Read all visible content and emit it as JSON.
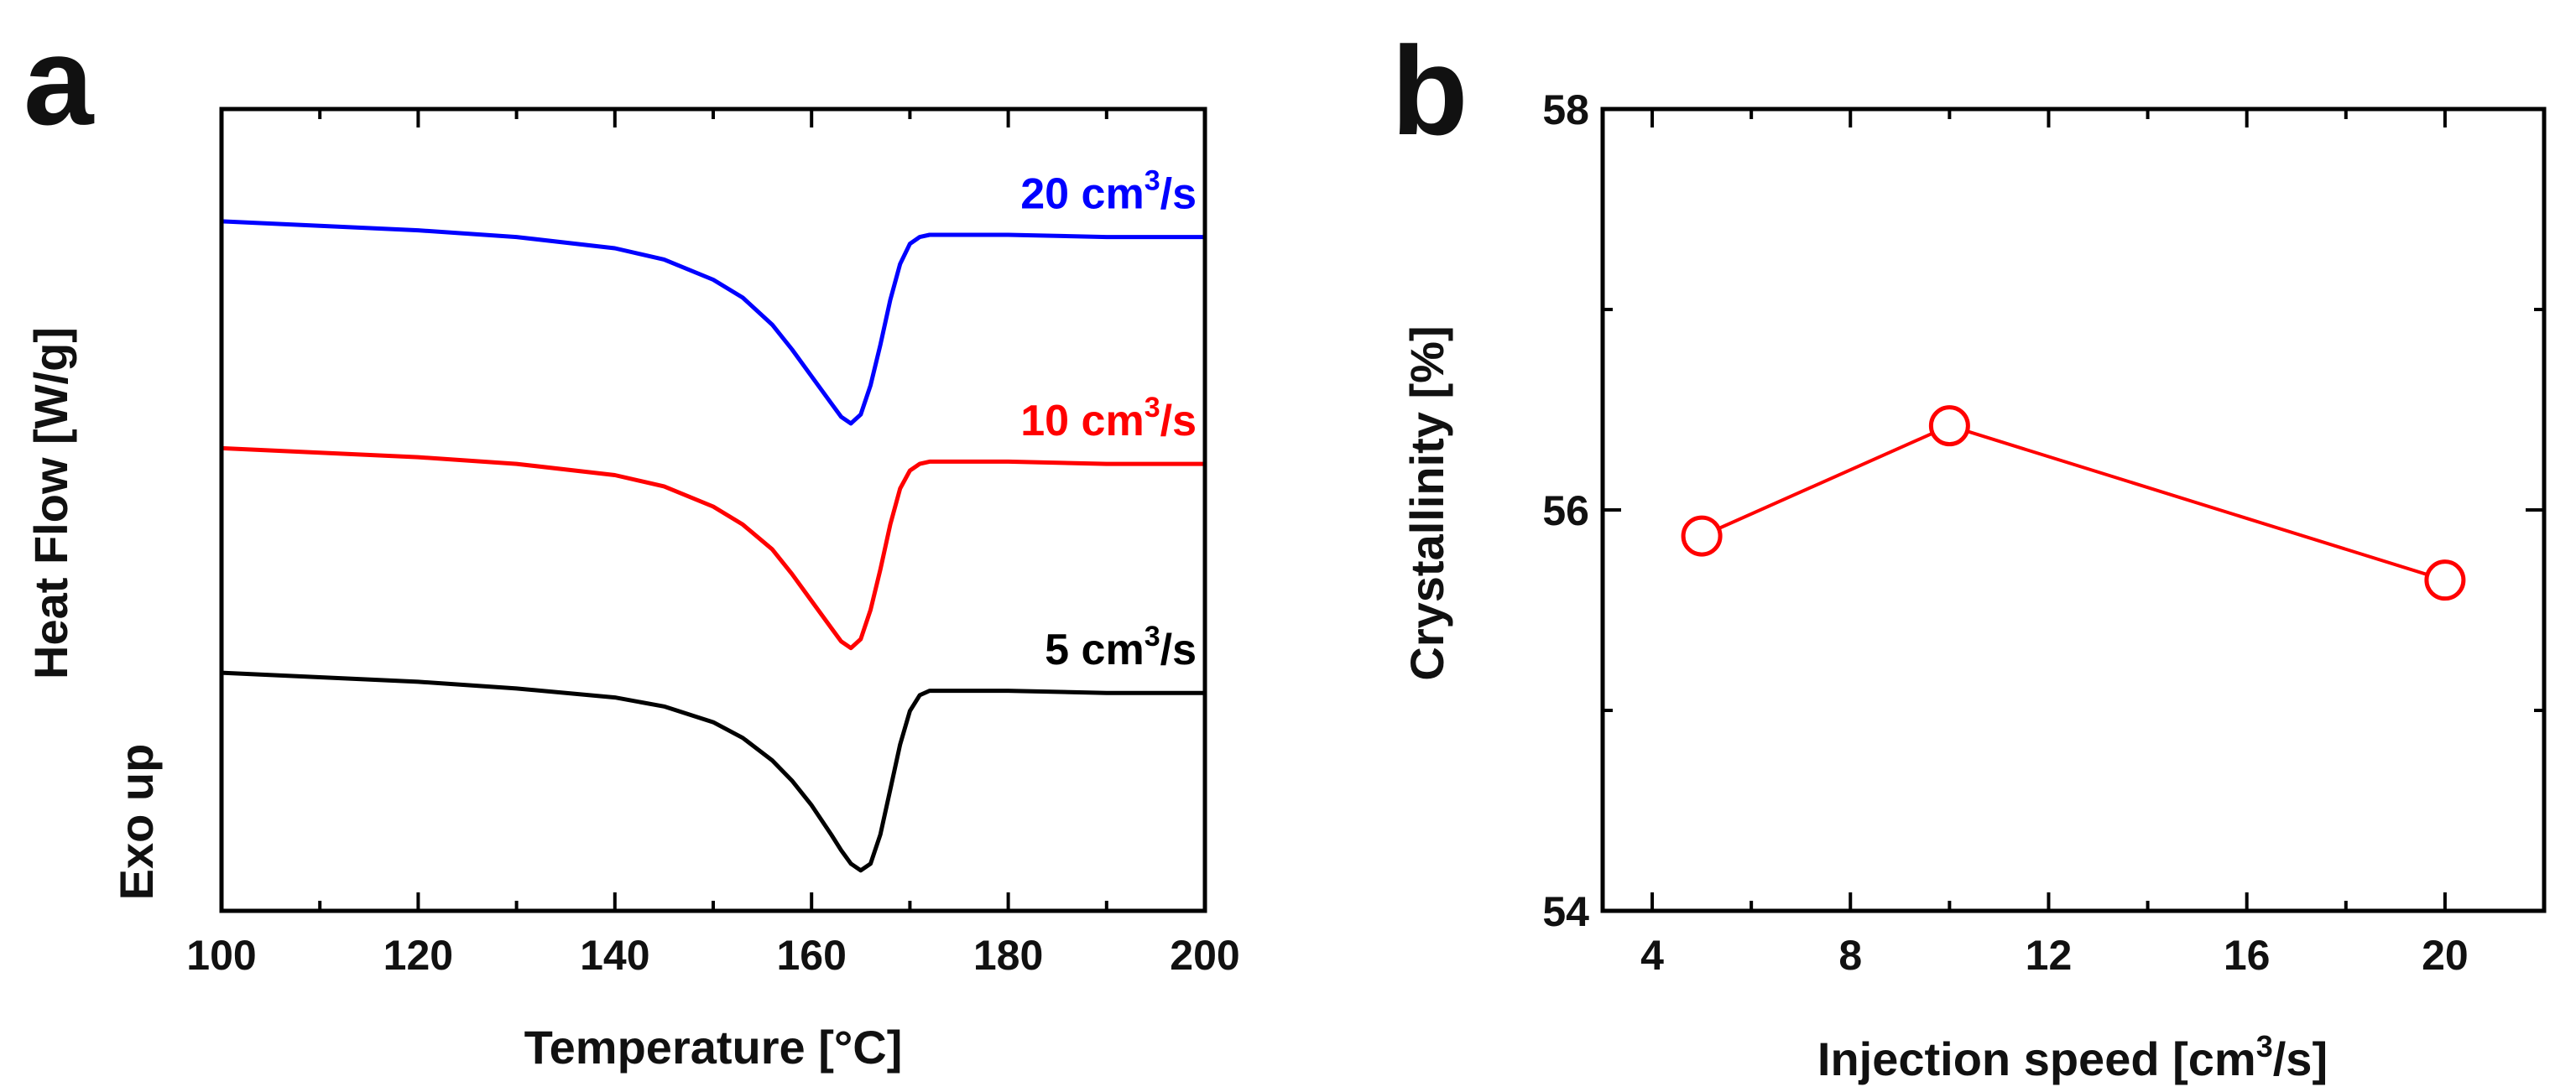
{
  "chart_data": [
    {
      "panel": "a",
      "type": "line",
      "xlabel": "Temperature [°C]",
      "ylabel": "Heat Flow [W/g]",
      "ylabel_note": "Exo up",
      "xlim": [
        100,
        200
      ],
      "x_ticks": [
        100,
        120,
        140,
        160,
        180,
        200
      ],
      "y_ticks_shown": false,
      "series": [
        {
          "name": "20 cm3/s",
          "label_main": "20 cm",
          "label_sup": "3",
          "label_tail": "/s",
          "color": "#0000ff",
          "offset": 2.0,
          "x": [
            100,
            110,
            120,
            130,
            140,
            145,
            150,
            153,
            156,
            158,
            160,
            162,
            163,
            164,
            165,
            166,
            167,
            168,
            169,
            170,
            171,
            172,
            175,
            180,
            190,
            200
          ],
          "y": [
            0.95,
            0.93,
            0.91,
            0.88,
            0.83,
            0.78,
            0.69,
            0.61,
            0.49,
            0.38,
            0.26,
            0.14,
            0.08,
            0.05,
            0.09,
            0.22,
            0.4,
            0.6,
            0.76,
            0.85,
            0.88,
            0.89,
            0.89,
            0.89,
            0.88,
            0.88
          ]
        },
        {
          "name": "10 cm3/s",
          "label_main": "10 cm",
          "label_sup": "3",
          "label_tail": "/s",
          "color": "#ff0000",
          "offset": 1.0,
          "x": [
            100,
            110,
            120,
            130,
            140,
            145,
            150,
            153,
            156,
            158,
            160,
            162,
            163,
            164,
            165,
            166,
            167,
            168,
            169,
            170,
            171,
            172,
            175,
            180,
            190,
            200
          ],
          "y": [
            0.94,
            0.92,
            0.9,
            0.87,
            0.82,
            0.77,
            0.68,
            0.6,
            0.49,
            0.38,
            0.26,
            0.14,
            0.08,
            0.05,
            0.09,
            0.22,
            0.4,
            0.6,
            0.76,
            0.84,
            0.87,
            0.88,
            0.88,
            0.88,
            0.87,
            0.87
          ]
        },
        {
          "name": "5 cm3/s",
          "label_main": "5 cm",
          "label_sup": "3",
          "label_tail": "/s",
          "color": "#000000",
          "offset": 0.0,
          "x": [
            100,
            110,
            120,
            130,
            140,
            145,
            150,
            153,
            156,
            158,
            160,
            162,
            163,
            164,
            165,
            166,
            167,
            168,
            169,
            170,
            171,
            172,
            175,
            180,
            190,
            200
          ],
          "y": [
            0.94,
            0.92,
            0.9,
            0.87,
            0.83,
            0.79,
            0.72,
            0.65,
            0.55,
            0.46,
            0.35,
            0.22,
            0.15,
            0.09,
            0.06,
            0.09,
            0.22,
            0.42,
            0.62,
            0.77,
            0.84,
            0.86,
            0.86,
            0.86,
            0.85,
            0.85
          ]
        }
      ]
    },
    {
      "panel": "b",
      "type": "line",
      "xlabel_main": "Injection speed [cm",
      "xlabel_sup": "3",
      "xlabel_tail": "/s]",
      "ylabel": "Crystallinity [%]",
      "xlim": [
        3,
        22
      ],
      "ylim": [
        54,
        58
      ],
      "x_ticks": [
        4,
        8,
        12,
        16,
        20
      ],
      "y_ticks": [
        54,
        56,
        58
      ],
      "series": [
        {
          "name": "Crystallinity",
          "color": "#ff0000",
          "marker": "open-circle",
          "x": [
            5,
            10,
            20
          ],
          "y": [
            55.87,
            56.42,
            55.65
          ]
        }
      ]
    }
  ]
}
